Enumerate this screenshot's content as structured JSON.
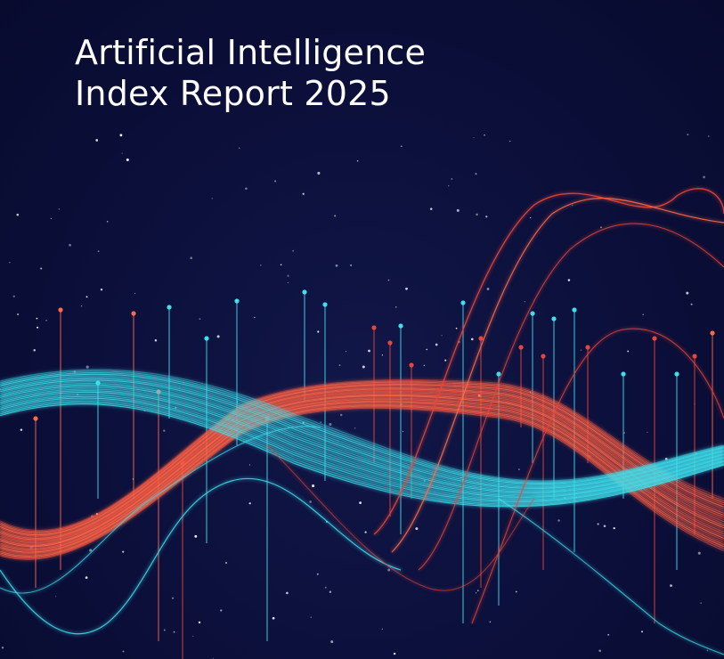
{
  "cover": {
    "title_line1": "Artificial Intelligence",
    "title_line2": "Index Report 2025"
  },
  "palette": {
    "background": "#0b0f3a",
    "cyan": "#3fe0ee",
    "orange": "#ff6a4a",
    "red": "#e8463a",
    "star": "#ffffff"
  }
}
